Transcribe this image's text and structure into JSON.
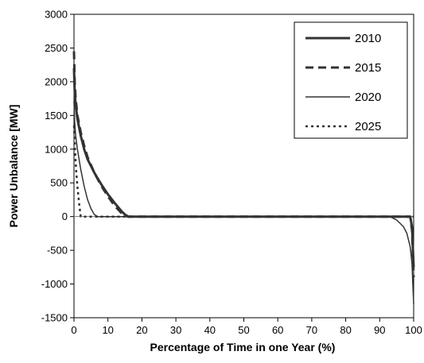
{
  "chart_data": {
    "type": "line",
    "title": "",
    "xlabel": "Percentage of Time in one Year (%)",
    "ylabel": "Power Unbalance [MW]",
    "xlim": [
      0,
      100
    ],
    "ylim": [
      -1500,
      3000
    ],
    "xticks": [
      0,
      10,
      20,
      30,
      40,
      50,
      60,
      70,
      80,
      90,
      100
    ],
    "yticks": [
      -1500,
      -1000,
      -500,
      0,
      500,
      1000,
      1500,
      2000,
      2500,
      3000
    ],
    "grid": false,
    "legend_position": "top-right",
    "series": [
      {
        "name": "2010",
        "style": "solid-thick",
        "x": [
          0,
          0.2,
          0.5,
          1,
          2,
          3,
          4,
          6,
          8,
          10,
          12,
          14,
          15,
          16,
          17,
          30,
          50,
          70,
          90,
          93,
          95,
          97,
          98,
          99,
          99.5,
          100
        ],
        "y": [
          2200,
          1850,
          1650,
          1450,
          1200,
          1000,
          850,
          650,
          480,
          330,
          200,
          80,
          30,
          0,
          0,
          0,
          0,
          0,
          0,
          0,
          0,
          0,
          0,
          0,
          -150,
          -750
        ]
      },
      {
        "name": "2015",
        "style": "dashed-thick",
        "x": [
          0,
          0.2,
          0.5,
          1,
          2,
          3,
          4,
          6,
          8,
          10,
          12,
          14,
          15,
          16,
          17,
          30,
          50,
          70,
          90,
          94,
          96,
          97,
          98,
          99,
          99.5,
          100
        ],
        "y": [
          2450,
          2000,
          1750,
          1500,
          1250,
          1050,
          880,
          650,
          460,
          300,
          160,
          50,
          10,
          0,
          0,
          0,
          0,
          0,
          0,
          0,
          0,
          0,
          0,
          0,
          -200,
          -900
        ]
      },
      {
        "name": "2020",
        "style": "solid-thin",
        "x": [
          0,
          0.2,
          0.5,
          1,
          1.5,
          2,
          3,
          4,
          5,
          6,
          7,
          10,
          30,
          50,
          70,
          90,
          93,
          95,
          97,
          98,
          99,
          99.5,
          100
        ],
        "y": [
          1700,
          1400,
          1200,
          1000,
          850,
          700,
          450,
          250,
          120,
          30,
          0,
          0,
          0,
          0,
          0,
          0,
          0,
          -50,
          -150,
          -250,
          -450,
          -700,
          -1300
        ]
      },
      {
        "name": "2025",
        "style": "dotted",
        "x": [
          0,
          0.3,
          0.6,
          1,
          1.5,
          2,
          3,
          10,
          30,
          50,
          70,
          90,
          99,
          100
        ],
        "y": [
          1350,
          1000,
          700,
          450,
          200,
          0,
          0,
          0,
          0,
          0,
          0,
          0,
          0,
          0
        ]
      }
    ]
  }
}
